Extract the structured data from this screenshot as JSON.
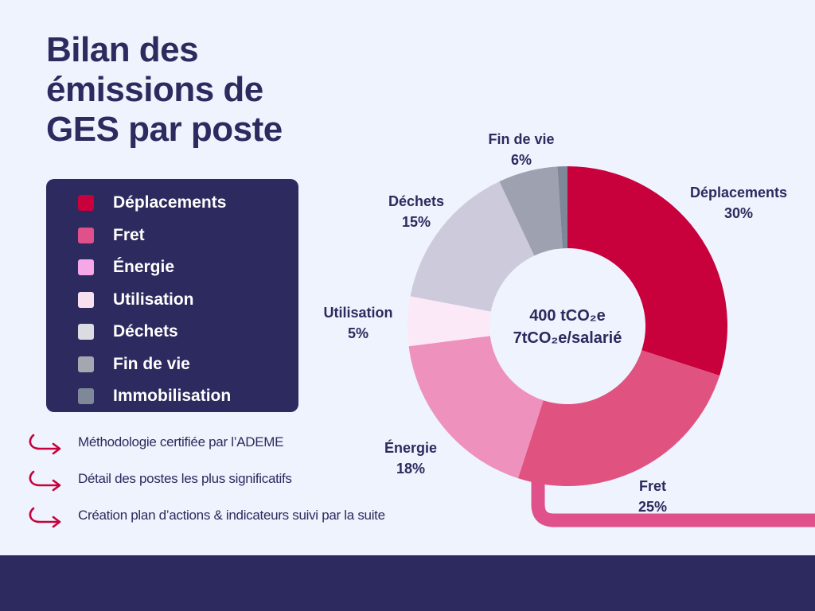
{
  "title_lines": [
    "Bilan des",
    "émissions de",
    "GES par poste"
  ],
  "colors": {
    "navy": "#2C2A5E",
    "background": "#EEF3FD",
    "accent": "#C8003C"
  },
  "legend": [
    {
      "label": "Déplacements",
      "color": "#C8003C"
    },
    {
      "label": "Fret",
      "color": "#E0508A"
    },
    {
      "label": "Énergie",
      "color": "#F6A8E6"
    },
    {
      "label": "Utilisation",
      "color": "#F7E1EF"
    },
    {
      "label": "Déchets",
      "color": "#DBDCE2"
    },
    {
      "label": "Fin de vie",
      "color": "#A4A7AF"
    },
    {
      "label": "Immobilisation",
      "color": "#7E8899"
    }
  ],
  "bullets": [
    {
      "icon": "curved-arrow-icon",
      "text": "Méthodologie certifiée par l’ADEME"
    },
    {
      "icon": "curved-arrow-icon",
      "text": "Détail des postes les plus significatifs"
    },
    {
      "icon": "curved-arrow-icon",
      "text": "Création plan d’actions & indicateurs suivi par la suite"
    }
  ],
  "chart_data": {
    "type": "pie",
    "variant": "donut",
    "center_text": [
      "400 tCO₂e",
      "7tCO₂e/salarié"
    ],
    "slices": [
      {
        "label": "Déplacements",
        "value": 30,
        "display": "30%",
        "color": "#C8003C"
      },
      {
        "label": "Fret",
        "value": 25,
        "display": "25%",
        "color": "#E0527F"
      },
      {
        "label": "Énergie",
        "value": 18,
        "display": "18%",
        "color": "#EE91BC"
      },
      {
        "label": "Utilisation",
        "value": 5,
        "display": "5%",
        "color": "#FCE9F7"
      },
      {
        "label": "Déchets",
        "value": 15,
        "display": "15%",
        "color": "#CDCBDB"
      },
      {
        "label": "Fin de vie",
        "value": 6,
        "display": "6%",
        "color": "#9DA1B0"
      },
      {
        "label": "Immobilisation",
        "value": 1,
        "display": "",
        "color": "#7E8899"
      }
    ]
  }
}
